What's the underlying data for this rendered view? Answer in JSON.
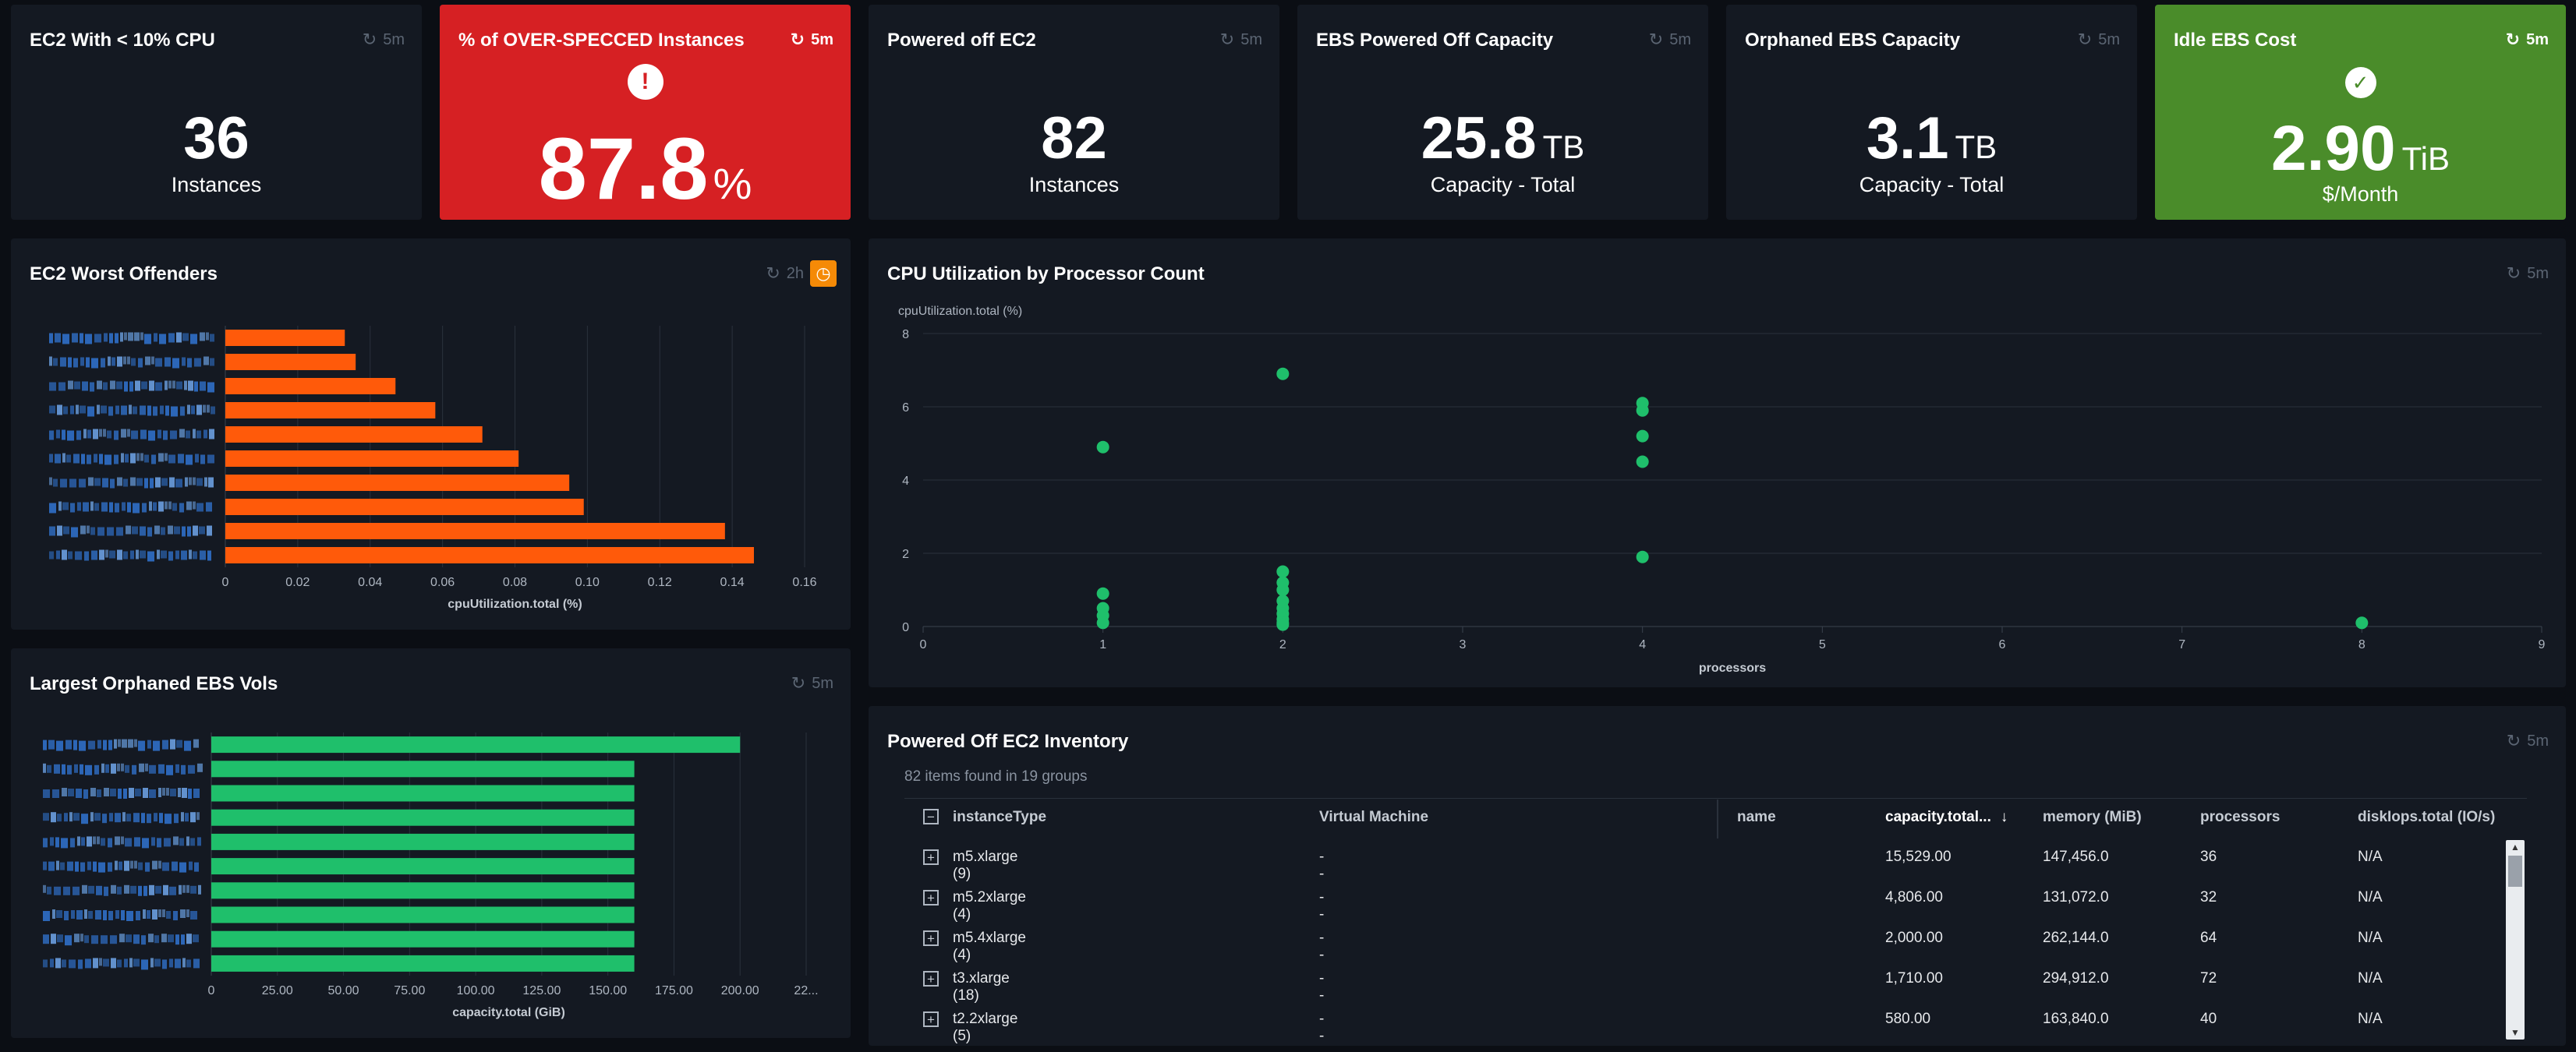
{
  "tiles": {
    "ec2_low_cpu": {
      "title": "EC2 With < 10% CPU",
      "refresh": "5m",
      "value": "36",
      "label": "Instances"
    },
    "overspecced": {
      "title": "% of OVER-SPECCED Instances",
      "refresh": "5m",
      "value": "87.8",
      "unit": "%",
      "icon": "exclamation-icon",
      "color": "#d62023"
    },
    "powered_off": {
      "title": "Powered off EC2",
      "refresh": "5m",
      "value": "82",
      "label": "Instances"
    },
    "ebs_powered_off": {
      "title": "EBS Powered Off Capacity",
      "refresh": "5m",
      "value": "25.8",
      "unit": "TB",
      "label": "Capacity - Total"
    },
    "orphaned_ebs": {
      "title": "Orphaned EBS Capacity",
      "refresh": "5m",
      "value": "3.1",
      "unit": "TB",
      "label": "Capacity - Total"
    },
    "idle_ebs_cost": {
      "title": "Idle EBS Cost",
      "refresh": "5m",
      "value": "2.90",
      "unit": "TiB",
      "label": "$/Month",
      "icon": "checkmark-icon",
      "color": "#4a8c2a"
    }
  },
  "worst_offenders": {
    "title": "EC2 Worst Offenders",
    "refresh": "2h"
  },
  "cpu_scatter": {
    "title": "CPU Utilization by Processor Count",
    "refresh": "5m"
  },
  "orphaned_vols": {
    "title": "Largest Orphaned EBS Vols",
    "refresh": "5m"
  },
  "inventory": {
    "title": "Powered Off EC2 Inventory",
    "refresh": "5m",
    "summary": "82 items found in 19 groups",
    "columns": [
      "instanceType",
      "Virtual Machine",
      "name",
      "capacity.total...",
      "memory (MiB)",
      "processors",
      "diskIops.total (IO/s)"
    ],
    "rows": [
      {
        "type": "m5.xlarge (9)",
        "vm": "--",
        "capacity": "15,529.00",
        "memory": "147,456.0",
        "processors": "36",
        "iops": "N/A"
      },
      {
        "type": "m5.2xlarge (4)",
        "vm": "--",
        "capacity": "4,806.00",
        "memory": "131,072.0",
        "processors": "32",
        "iops": "N/A"
      },
      {
        "type": "m5.4xlarge (4)",
        "vm": "--",
        "capacity": "2,000.00",
        "memory": "262,144.0",
        "processors": "64",
        "iops": "N/A"
      },
      {
        "type": "t3.xlarge (18)",
        "vm": "--",
        "capacity": "1,710.00",
        "memory": "294,912.0",
        "processors": "72",
        "iops": "N/A"
      },
      {
        "type": "t2.2xlarge (5)",
        "vm": "--",
        "capacity": "580.00",
        "memory": "163,840.0",
        "processors": "40",
        "iops": "N/A"
      }
    ]
  },
  "chart_data": [
    {
      "type": "bar",
      "orientation": "horizontal",
      "xlabel": "cpuUtilization.total (%)",
      "xlim": [
        0,
        0.16
      ],
      "xticks": [
        "0",
        "0.02",
        "0.04",
        "0.06",
        "0.08",
        "0.10",
        "0.12",
        "0.14",
        "0.16"
      ],
      "values": [
        0.033,
        0.036,
        0.047,
        0.058,
        0.071,
        0.081,
        0.095,
        0.099,
        0.138,
        0.146
      ],
      "color": "#ff5a0a"
    },
    {
      "type": "scatter",
      "ylabel": "cpuUtilization.total (%)",
      "xlabel": "processors",
      "xlim": [
        0,
        9
      ],
      "ylim": [
        0,
        8
      ],
      "xticks": [
        "0",
        "1",
        "2",
        "3",
        "4",
        "5",
        "6",
        "7",
        "8",
        "9"
      ],
      "yticks": [
        "0",
        "2",
        "4",
        "6",
        "8"
      ],
      "points": [
        [
          1,
          4.9
        ],
        [
          1,
          0.9
        ],
        [
          1,
          0.5
        ],
        [
          1,
          0.3
        ],
        [
          1,
          0.1
        ],
        [
          2,
          6.9
        ],
        [
          2,
          1.5
        ],
        [
          2,
          1.2
        ],
        [
          2,
          1.0
        ],
        [
          2,
          0.7
        ],
        [
          2,
          0.5
        ],
        [
          2,
          0.35
        ],
        [
          2,
          0.2
        ],
        [
          2,
          0.1
        ],
        [
          2,
          0.05
        ],
        [
          4,
          6.1
        ],
        [
          4,
          5.9
        ],
        [
          4,
          5.2
        ],
        [
          4,
          4.5
        ],
        [
          4,
          1.9
        ],
        [
          8,
          0.1
        ]
      ],
      "color": "#1fbf6b"
    },
    {
      "type": "bar",
      "orientation": "horizontal",
      "xlabel": "capacity.total (GiB)",
      "xlim": [
        0,
        225
      ],
      "xticks": [
        "0",
        "25.00",
        "50.00",
        "75.00",
        "100.00",
        "125.00",
        "150.00",
        "175.00",
        "200.00",
        "22..."
      ],
      "values": [
        200,
        160,
        160,
        160,
        160,
        160,
        160,
        160,
        160,
        160
      ],
      "color": "#1fbf6b"
    }
  ]
}
